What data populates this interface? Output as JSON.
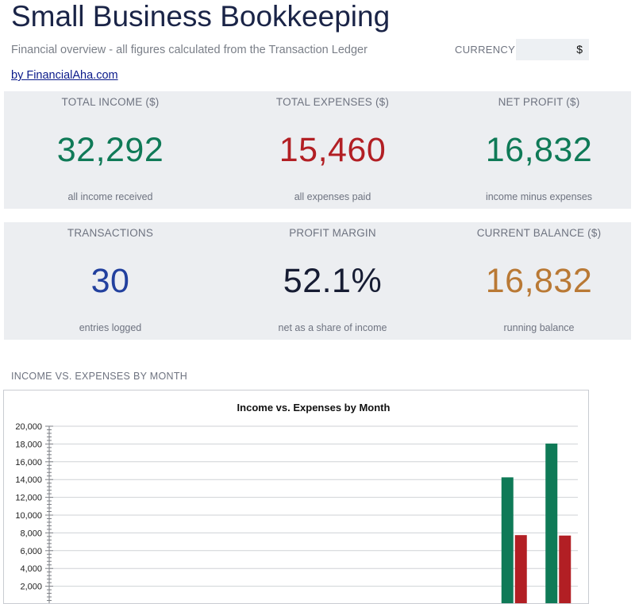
{
  "header": {
    "title": "Small Business Bookkeeping",
    "subtitle": "Financial overview - all figures calculated from the Transaction Ledger",
    "currency_label": "CURRENCY",
    "currency_value": "$",
    "author_link": "by FinancialAha.com"
  },
  "kpis": [
    {
      "label": "TOTAL INCOME ($)",
      "value": "32,292",
      "sub": "all income received",
      "color": "#0f7a57"
    },
    {
      "label": "TOTAL EXPENSES ($)",
      "value": "15,460",
      "sub": "all expenses paid",
      "color": "#b21f24"
    },
    {
      "label": "NET PROFIT ($)",
      "value": "16,832",
      "sub": "income minus expenses",
      "color": "#0f7a57"
    },
    {
      "label": "TRANSACTIONS",
      "value": "30",
      "sub": "entries logged",
      "color": "#22409e"
    },
    {
      "label": "PROFIT MARGIN",
      "value": "52.1%",
      "sub": "net as a share of income",
      "color": "#161c33"
    },
    {
      "label": "CURRENT BALANCE ($)",
      "value": "16,832",
      "sub": "running balance",
      "color": "#b97935"
    }
  ],
  "chart_section": {
    "heading": "INCOME VS. EXPENSES BY MONTH"
  },
  "chart_data": {
    "type": "bar",
    "title": "Income vs. Expenses by Month",
    "xlabel": "",
    "ylabel": "",
    "ylim": [
      0,
      20000
    ],
    "yticks": [
      2000,
      4000,
      6000,
      8000,
      10000,
      12000,
      14000,
      16000,
      18000,
      20000
    ],
    "ytick_labels": [
      "2,000",
      "4,000",
      "6,000",
      "8,000",
      "10,000",
      "12,000",
      "14,000",
      "16,000",
      "18,000",
      "20,000"
    ],
    "grid": true,
    "num_periods": 12,
    "series": [
      {
        "values": [
          0,
          0,
          0,
          0,
          0,
          0,
          0,
          0,
          0,
          0,
          14250,
          18050
        ],
        "color": "#0f7a57"
      },
      {
        "values": [
          0,
          0,
          0,
          0,
          0,
          0,
          0,
          0,
          0,
          0,
          7750,
          7700
        ],
        "color": "#b21f24"
      }
    ]
  }
}
